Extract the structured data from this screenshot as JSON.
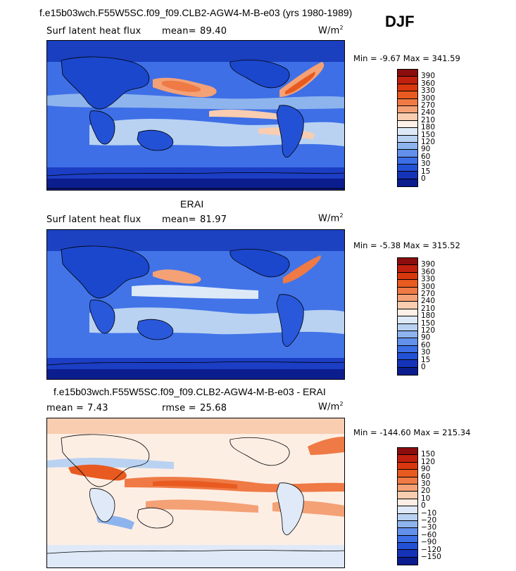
{
  "header": {
    "main_title": "f.e15b03wch.F55W5SC.f09_f09.CLB2-AGW4-M-B-e03 (yrs 1980-1989)",
    "season": "DJF"
  },
  "panels": [
    {
      "id": "model",
      "title": "",
      "variable": "Surf latent heat flux",
      "stat_label": "mean=",
      "stat_value": "89.40",
      "stat2_label": "",
      "stat2_value": "",
      "units": "W/m",
      "units_exp": "2",
      "min_label": "Min =",
      "min_value": "-9.67",
      "max_label": "Max =",
      "max_value": "341.59"
    },
    {
      "id": "obs",
      "title": "ERAI",
      "variable": "Surf latent heat flux",
      "stat_label": "mean=",
      "stat_value": "81.97",
      "stat2_label": "",
      "stat2_value": "",
      "units": "W/m",
      "units_exp": "2",
      "min_label": "Min =",
      "min_value": "-5.38",
      "max_label": "Max =",
      "max_value": "315.52"
    },
    {
      "id": "diff",
      "title": "f.e15b03wch.F55W5SC.f09_f09.CLB2-AGW4-M-B-e03 - ERAI",
      "variable": "",
      "stat_label": "mean =",
      "stat_value": "7.43",
      "stat2_label": "rmse =",
      "stat2_value": "25.68",
      "units": "W/m",
      "units_exp": "2",
      "min_label": "Min =",
      "min_value": "-144.60",
      "max_label": "Max =",
      "max_value": "215.34"
    }
  ],
  "colorbars": {
    "abs_levels": [
      "390",
      "360",
      "330",
      "300",
      "270",
      "240",
      "210",
      "180",
      "150",
      "120",
      "90",
      "60",
      "30",
      "15",
      "0"
    ],
    "abs_colors": [
      "#8b0d0d",
      "#c0200f",
      "#d9380f",
      "#e85a20",
      "#ef7a45",
      "#f4a176",
      "#f9cdb0",
      "#fdf0e6",
      "#dde9f7",
      "#b9d2f2",
      "#8eb4ee",
      "#6390ea",
      "#3c6ee6",
      "#2351d6",
      "#1533b8",
      "#0b1c8f"
    ],
    "diff_levels": [
      "150",
      "120",
      "90",
      "60",
      "30",
      "20",
      "10",
      "0",
      "-10",
      "-20",
      "-30",
      "-60",
      "-90",
      "-120",
      "-150"
    ],
    "diff_colors": [
      "#8b0d0d",
      "#c0200f",
      "#d9380f",
      "#e85a20",
      "#ef7a45",
      "#f4a176",
      "#f9cdb0",
      "#fdeee4",
      "#dfe9f7",
      "#b9d2f2",
      "#8eb4ee",
      "#6390ea",
      "#3c6ee6",
      "#2351d6",
      "#1533b8",
      "#0b1c8f"
    ]
  },
  "chart_data": [
    {
      "type": "heatmap",
      "title": "Surf latent heat flux",
      "units": "W/m2",
      "mean": 89.4,
      "min": -9.67,
      "max": 341.59,
      "levels": [
        0,
        15,
        30,
        60,
        90,
        120,
        150,
        180,
        210,
        240,
        270,
        300,
        330,
        360,
        390
      ]
    },
    {
      "type": "heatmap",
      "title": "ERAI",
      "units": "W/m2",
      "mean": 81.97,
      "min": -5.38,
      "max": 315.52,
      "levels": [
        0,
        15,
        30,
        60,
        90,
        120,
        150,
        180,
        210,
        240,
        270,
        300,
        330,
        360,
        390
      ]
    },
    {
      "type": "heatmap",
      "title": "f.e15b03wch.F55W5SC.f09_f09.CLB2-AGW4-M-B-e03 - ERAI",
      "units": "W/m2",
      "mean": 7.43,
      "rmse": 25.68,
      "min": -144.6,
      "max": 215.34,
      "levels": [
        -150,
        -120,
        -90,
        -60,
        -30,
        -20,
        -10,
        0,
        10,
        20,
        30,
        60,
        90,
        120,
        150
      ]
    }
  ]
}
